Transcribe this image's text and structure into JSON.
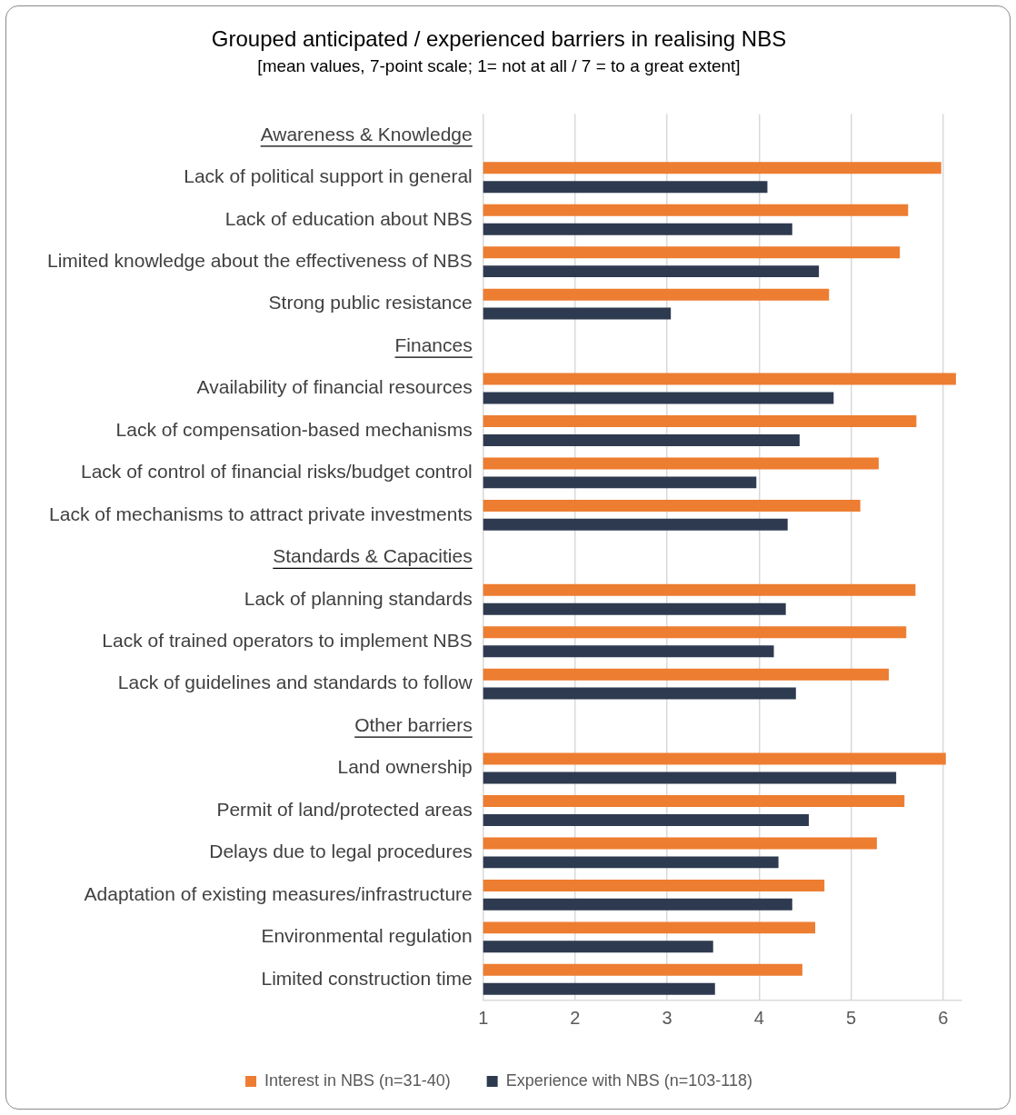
{
  "chart_data": {
    "type": "bar",
    "orientation": "horizontal",
    "title": "Grouped anticipated / experienced barriers in realising NBS",
    "subtitle": "[mean values, 7-point scale; 1= not at all / 7 = to a great extent]",
    "categories": [
      "Awareness & Knowledge",
      "Lack of political support in general",
      "Lack of education about NBS",
      "Limited knowledge about the effectiveness of NBS",
      "Strong public resistance",
      "Finances",
      "Availability of financial resources",
      "Lack of compensation-based mechanisms",
      "Lack of control of financial risks/budget control",
      "Lack of mechanisms to attract private investments",
      "Standards & Capacities",
      "Lack of planning standards",
      "Lack of trained operators to implement NBS",
      "Lack of guidelines and standards to follow",
      "Other barriers",
      "Land ownership",
      "Permit of land/protected areas",
      "Delays due to legal procedures",
      "Adaptation of existing measures/infrastructure",
      "Environmental regulation",
      "Limited construction time"
    ],
    "series": [
      {
        "name": "Interest in NBS (n=31-40)",
        "color": "#ed7d31",
        "values": [
          null,
          5.98,
          5.62,
          5.53,
          4.76,
          null,
          6.14,
          5.71,
          5.3,
          5.1,
          null,
          5.7,
          5.6,
          5.41,
          null,
          6.03,
          5.58,
          5.28,
          4.71,
          4.61,
          4.47
        ]
      },
      {
        "name": "Experience with NBS (n=103-118)",
        "color": "#2e3a4f",
        "values": [
          null,
          4.09,
          4.36,
          4.65,
          3.04,
          null,
          4.81,
          4.44,
          3.97,
          4.31,
          null,
          4.29,
          4.16,
          4.4,
          null,
          5.49,
          4.54,
          4.21,
          4.36,
          3.5,
          3.52
        ]
      }
    ],
    "xlim": [
      1,
      6.2
    ],
    "xticks": [
      1,
      2,
      3,
      4,
      5,
      6
    ],
    "grid": "x",
    "legend": "bottom"
  }
}
